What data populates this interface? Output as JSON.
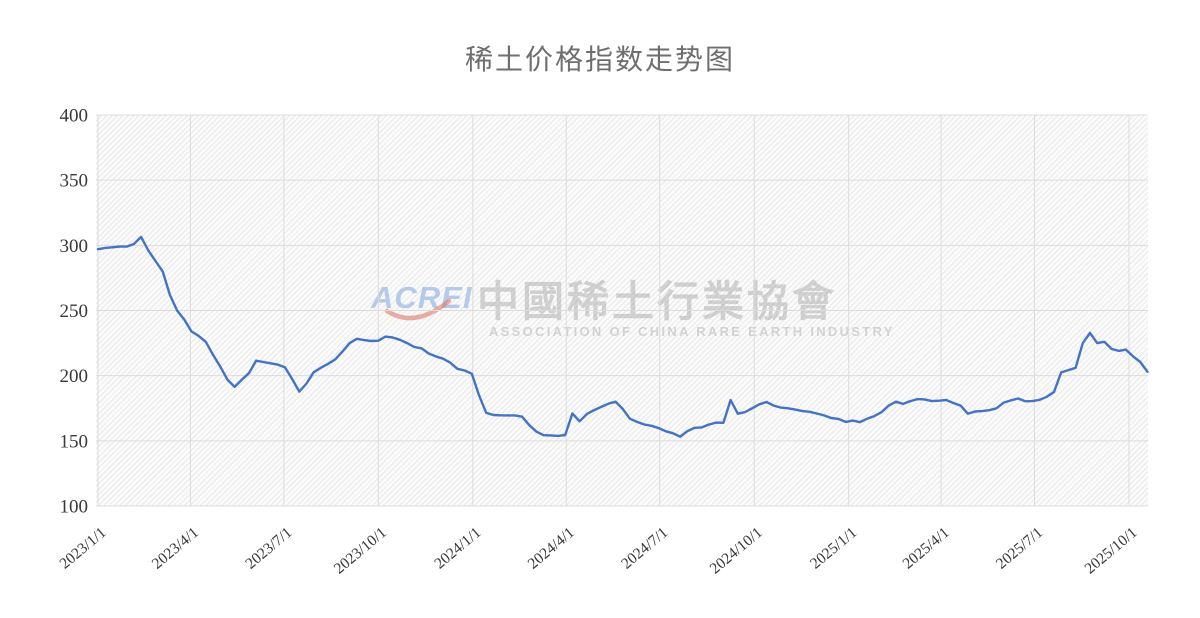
{
  "chart_data": {
    "type": "line",
    "title": "稀土价格指数走势图",
    "xlabel": "",
    "ylabel": "",
    "ylim": [
      100,
      400
    ],
    "y_ticks": [
      100,
      150,
      200,
      250,
      300,
      350,
      400
    ],
    "x_tick_labels": [
      "2023/1/1",
      "2023/4/1",
      "2023/7/1",
      "2023/10/1",
      "2024/1/1",
      "2024/4/1",
      "2024/7/1",
      "2024/10/1",
      "2025/1/1",
      "2025/4/1",
      "2025/7/1",
      "2025/10/1"
    ],
    "x_tick_day_offsets": [
      0,
      90,
      181,
      273,
      365,
      456,
      547,
      639,
      731,
      821,
      912,
      1004
    ],
    "grid": true,
    "legend_position": "none",
    "series": [
      {
        "name": "稀土价格指数",
        "color": "#4472C4",
        "start_date": "2023/1/1",
        "interval_days": 7,
        "values": [
          297,
          298,
          298.5,
          299,
          299,
          301,
          306.5,
          296,
          288,
          280,
          262,
          250,
          243,
          234,
          230.5,
          226,
          216,
          207,
          197,
          191.4,
          196.8,
          202,
          211.5,
          210.5,
          209.5,
          208.5,
          206.5,
          197.5,
          187.8,
          194,
          202.5,
          206,
          209,
          212.5,
          218.5,
          225,
          228.3,
          227.3,
          226.6,
          226.8,
          230,
          229.3,
          227.5,
          225,
          222,
          221,
          217,
          214.8,
          213,
          210,
          205.3,
          204,
          201.5,
          185,
          171.5,
          169.8,
          169.6,
          169.5,
          169.5,
          168.5,
          162,
          157,
          154.3,
          154.2,
          153.8,
          154.5,
          171,
          165,
          170.5,
          173.5,
          176,
          178.5,
          180,
          174.5,
          167,
          164.5,
          162.5,
          161.5,
          159.8,
          157.3,
          155.8,
          153.2,
          157.5,
          160,
          160.3,
          162.5,
          164,
          163.8,
          181.3,
          170.8,
          172,
          175,
          178,
          179.8,
          177,
          175.5,
          175,
          174,
          172.8,
          172.3,
          171,
          169.5,
          167.5,
          166.8,
          164.5,
          165.5,
          164.3,
          167,
          169,
          172,
          177,
          180,
          178.3,
          180.5,
          182,
          181.8,
          180.5,
          180.8,
          181.3,
          179,
          177,
          170.8,
          172.5,
          172.8,
          173.5,
          175,
          179.3,
          181,
          182.5,
          180.3,
          180.5,
          181.5,
          183.8,
          187.5,
          202.5,
          204.3,
          206,
          225,
          232.8,
          225,
          226,
          220.5,
          219,
          220,
          214.8,
          210.5,
          203
        ]
      }
    ]
  },
  "watermark": {
    "logo_text": "ACREI",
    "cn_name": "中國稀土行業協會",
    "en_name": "ASSOCIATION OF CHINA RARE EARTH INDUSTRY",
    "logo_color": "#a6c0e6",
    "swoosh_color": "#dd6f5c"
  },
  "colors": {
    "line": "#4472C4",
    "gridline": "#dcdcdc",
    "axis_text": "#383838",
    "title_text": "#6e6e6e"
  }
}
